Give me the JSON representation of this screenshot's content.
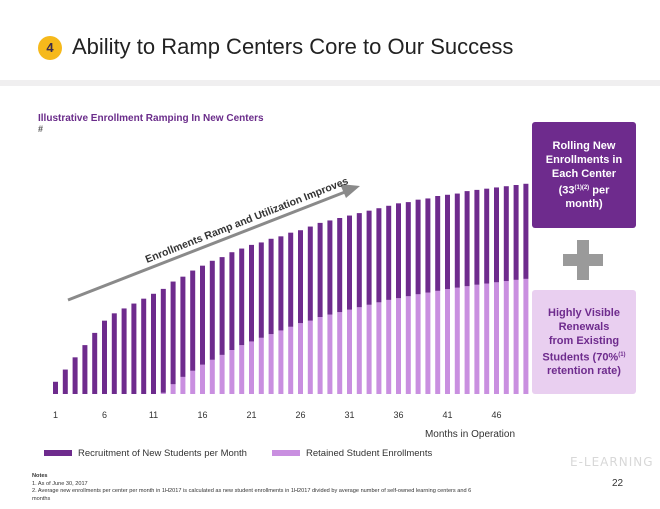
{
  "header": {
    "badge": "4",
    "title": "Ability to Ramp Centers Core to Our Success"
  },
  "subtitle": "Illustrative Enrollment Ramping In New Centers",
  "subtitle_mark": "#",
  "arrow_label": "Enrollments Ramp and Utilization Improves",
  "callout_top": {
    "line1": "Rolling New",
    "line2": "Enrollments in",
    "line3": "Each Center",
    "line4_pre": "(33",
    "line4_sup": "(1)(2)",
    "line4_post": " per",
    "line5": "month)"
  },
  "callout_bottom": {
    "line1": "Highly Visible",
    "line2": "Renewals",
    "line3": "from Existing",
    "line4_pre": "Students (70%",
    "line4_sup": "(1)",
    "line5": "retention rate)"
  },
  "legend": {
    "recruit": "Recruitment of New Students per Month",
    "retained": "Retained Student Enrollments"
  },
  "notes": {
    "heading": "Notes",
    "n1": "1.  As of June 30, 2017",
    "n2": "2.  Average new enrollments per center per month in 1H2017 is calculated as new student enrollments in 1H2017 divided by average number of self-owned learning centers and 6",
    "n2b": "     months"
  },
  "page_number": "22",
  "watermark": "E-LEARNING",
  "colors": {
    "recruit": "#6e2b8d",
    "retained": "#c98fe0",
    "accent": "#f6b91b",
    "arrow": "#888888"
  },
  "chart_data": {
    "type": "bar",
    "stacked": true,
    "x": [
      1,
      2,
      3,
      4,
      5,
      6,
      7,
      8,
      9,
      10,
      11,
      12,
      13,
      14,
      15,
      16,
      17,
      18,
      19,
      20,
      21,
      22,
      23,
      24,
      25,
      26,
      27,
      28,
      29,
      30,
      31,
      32,
      33,
      34,
      35,
      36,
      37,
      38,
      39,
      40,
      41,
      42,
      43,
      44,
      45,
      46,
      47,
      48,
      49
    ],
    "x_ticks": [
      "1",
      "6",
      "11",
      "16",
      "21",
      "26",
      "31",
      "36",
      "41",
      "46"
    ],
    "xlabel": "Months in Operation",
    "series": [
      {
        "name": "Retained Student Enrollments",
        "values": [
          0,
          0,
          0,
          0,
          0,
          0,
          0,
          0,
          0,
          0,
          0,
          0.5,
          4,
          7,
          9.5,
          12,
          14,
          16,
          18,
          20,
          21.5,
          23,
          24.5,
          26,
          27.5,
          29,
          30,
          31.5,
          32.5,
          33.5,
          34.5,
          35.5,
          36.5,
          37.5,
          38.5,
          39.2,
          40,
          40.8,
          41.5,
          42.2,
          42.9,
          43.5,
          44.1,
          44.7,
          45.2,
          45.7,
          46.2,
          46.7,
          47.1
        ]
      },
      {
        "name": "Recruitment of New Students per Month",
        "values": [
          5,
          10,
          15,
          20,
          25,
          30,
          33,
          35,
          37,
          39,
          41,
          42.5,
          42,
          41,
          41,
          40.5,
          40.5,
          40,
          40,
          39.5,
          39.5,
          39,
          39,
          38.5,
          38.5,
          38,
          38.5,
          38.5,
          38.5,
          38.5,
          38.5,
          38.5,
          38.5,
          38.5,
          38.5,
          38.8,
          38.5,
          38.7,
          38.5,
          38.8,
          38.6,
          38.5,
          38.9,
          38.8,
          38.8,
          38.8,
          38.8,
          38.8,
          38.9
        ]
      }
    ],
    "ylim": [
      0,
      90
    ],
    "grid": false,
    "legend_position": "bottom"
  }
}
